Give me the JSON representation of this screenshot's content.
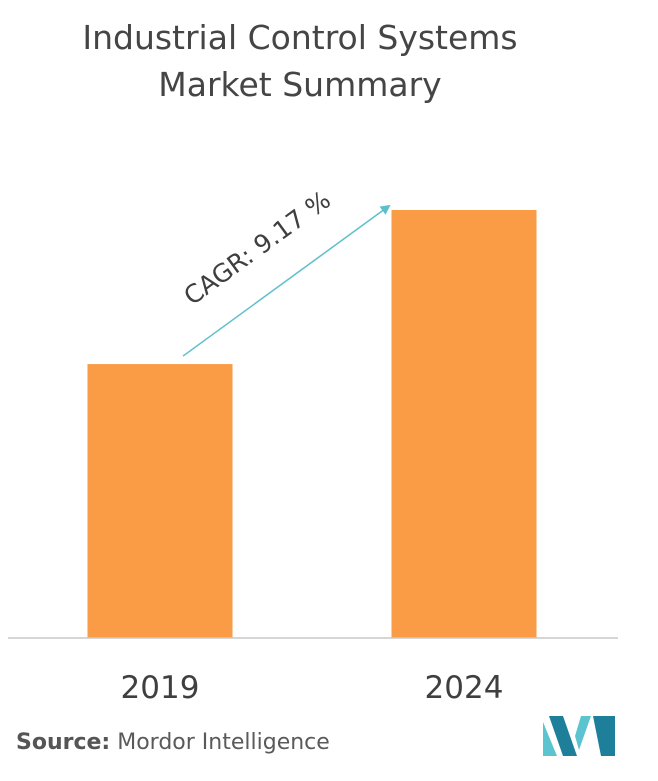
{
  "chart_data": {
    "type": "bar",
    "title": "Industrial Control Systems Market Summary",
    "categories": [
      "2019",
      "2024"
    ],
    "values": [
      0.64,
      1.0
    ],
    "ylim": [
      0,
      1
    ],
    "annotation": "CAGR: 9.17 %",
    "grid": false,
    "colors": {
      "bar": "#fa9b45",
      "arrow": "#5bc0ca",
      "axis": "#c8c8c8"
    }
  },
  "source": {
    "label": "Source:",
    "name": "Mordor Intelligence"
  },
  "logo": {
    "icon": "mordor-intelligence-logo-icon",
    "colors": [
      "#1e7f9a",
      "#5cc4cf"
    ]
  }
}
